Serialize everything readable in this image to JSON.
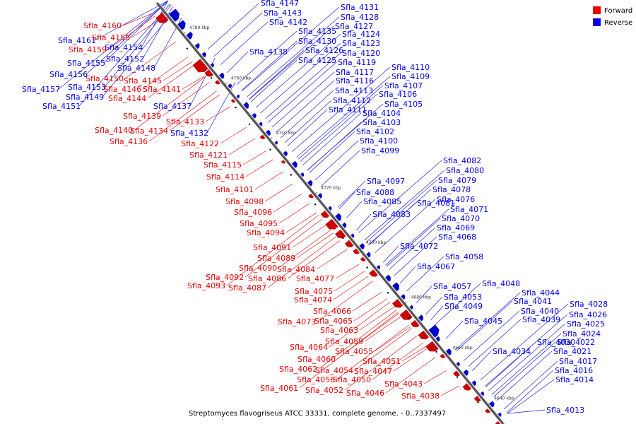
{
  "caption": "Streptomyces flavogriseus ATCC 33331, complete genome. - 0..7337497",
  "legend": [
    {
      "label": "Forward",
      "color": "#ee0000"
    },
    {
      "label": "Reverse",
      "color": "#0000ee"
    }
  ],
  "colors": {
    "forward": "#ee0000",
    "reverse": "#0000ee",
    "forward_line": "#e02020",
    "reverse_line": "#2020e0"
  },
  "axis_ticks": [
    "4780 kbp",
    "4760 kbp",
    "4740 kbp",
    "4720 kbp",
    "4700 kbp",
    "4680 kbp",
    "4660 kbp",
    "4640 kbp"
  ],
  "reverse_labels": [
    "Sfla_4147",
    "Sfla_4143",
    "Sfla_4142",
    "Sfla_4161",
    "Sfla_4154",
    "Sfla_4152",
    "Sfla_4155",
    "Sfla_4148",
    "Sfla_4156",
    "Sfla_4153",
    "Sfla_4157",
    "Sfla_4149",
    "Sfla_4151",
    "Sfla_4137",
    "Sfla_4132",
    "Sfla_4138",
    "Sfla_4131",
    "Sfla_4128",
    "Sfla_4127",
    "Sfla_4135",
    "Sfla_4124",
    "Sfla_4130",
    "Sfla_4123",
    "Sfla_4126",
    "Sfla_4120",
    "Sfla_4125",
    "Sfla_4119",
    "Sfla_4110",
    "Sfla_4117",
    "Sfla_4109",
    "Sfla_4116",
    "Sfla_4107",
    "Sfla_4113",
    "Sfla_4106",
    "Sfla_4112",
    "Sfla_4105",
    "Sfla_4111",
    "Sfla_4104",
    "Sfla_4103",
    "Sfla_4102",
    "Sfla_4100",
    "Sfla_4099",
    "Sfla_4082",
    "Sfla_4080",
    "Sfla_4097",
    "Sfla_4079",
    "Sfla_4088",
    "Sfla_4078",
    "Sfla_4076",
    "Sfla_4085",
    "Sfla_4081",
    "Sfla_4071",
    "Sfla_4083",
    "Sfla_4070",
    "Sfla_4069",
    "Sfla_4068",
    "Sfla_4072",
    "Sfla_4058",
    "Sfla_4067",
    "Sfla_4048",
    "Sfla_4057",
    "Sfla_4044",
    "Sfla_4053",
    "Sfla_4041",
    "Sfla_4049",
    "Sfla_4040",
    "Sfla_4045",
    "Sfla_4039",
    "Sfla_4028",
    "Sfla_4026",
    "Sfla_4025",
    "Sfla_4024",
    "Sfla_4030",
    "Sfla_4022",
    "Sfla_4034",
    "Sfla_4021",
    "Sfla_4017",
    "Sfla_4016",
    "Sfla_4014",
    "Sfla_4013"
  ],
  "forward_labels": [
    "Sfla_4160",
    "Sfla_4158",
    "Sfla_4159",
    "Sfla_4150",
    "Sfla_4145",
    "Sfla_4146",
    "Sfla_4141",
    "Sfla_4144",
    "Sfla_4139",
    "Sfla_4133",
    "Sfla_4140",
    "Sfla_4134",
    "Sfla_4136",
    "Sfla_4122",
    "Sfla_4121",
    "Sfla_4115",
    "Sfla_4114",
    "Sfla_4101",
    "Sfla_4098",
    "Sfla_4096",
    "Sfla_4095",
    "Sfla_4094",
    "Sfla_4091",
    "Sfla_4089",
    "Sfla_4090",
    "Sfla_4084",
    "Sfla_4092",
    "Sfla_4086",
    "Sfla_4077",
    "Sfla_4093",
    "Sfla_4087",
    "Sfla_4075",
    "Sfla_4074",
    "Sfla_4066",
    "Sfla_4065",
    "Sfla_4073",
    "Sfla_4063",
    "Sfla_4059",
    "Sfla_4064",
    "Sfla_4055",
    "Sfla_4060",
    "Sfla_4051",
    "Sfla_4062",
    "Sfla_4054",
    "Sfla_4047",
    "Sfla_4056",
    "Sfla_4050",
    "Sfla_4043",
    "Sfla_4061",
    "Sfla_4052",
    "Sfla_4046",
    "Sfla_4038"
  ]
}
